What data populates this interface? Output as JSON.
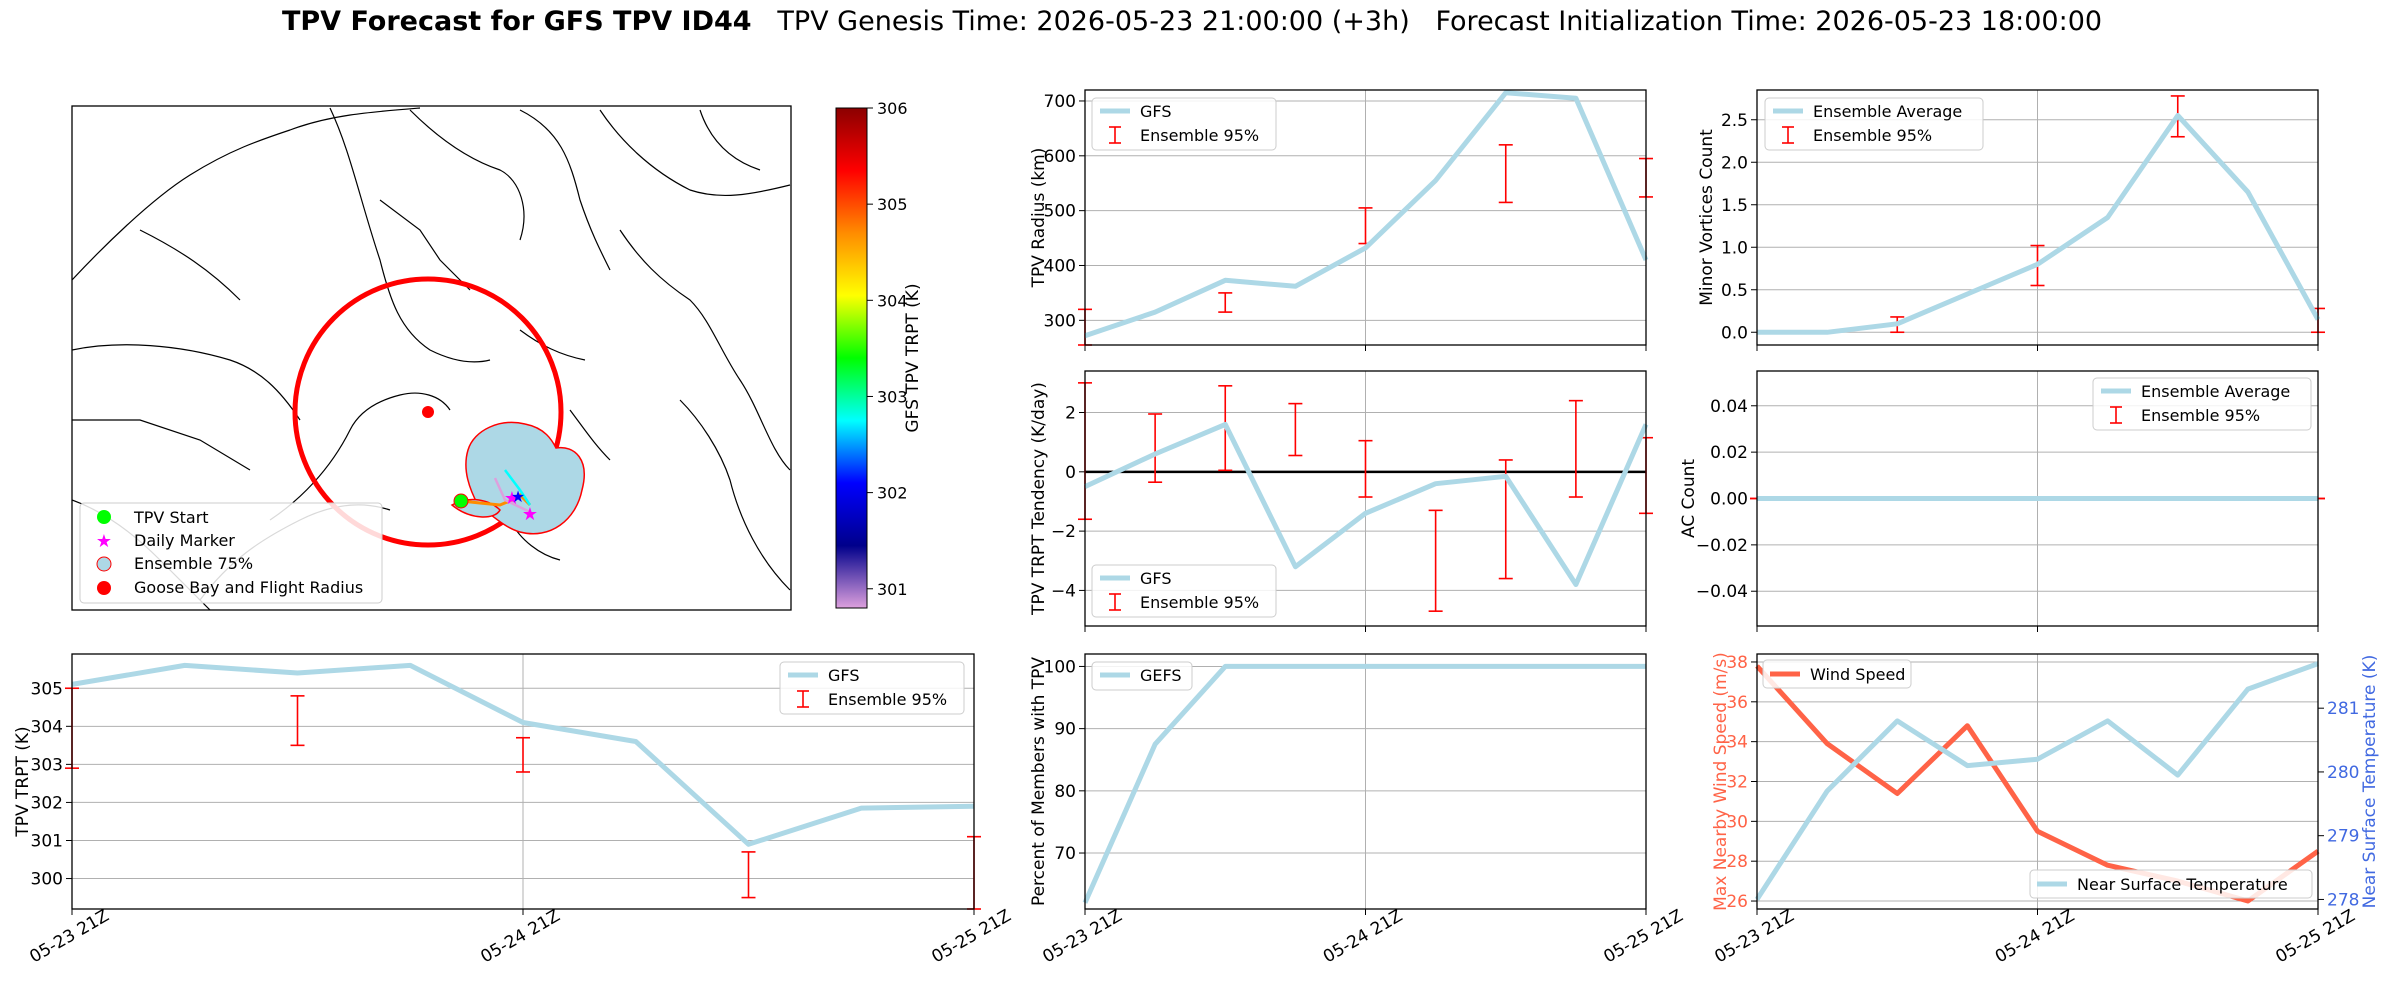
{
  "title": {
    "bold": "TPV Forecast for GFS TPV ID44",
    "rest": "TPV Genesis Time: 2026-05-23 21:00:00 (+3h)   Forecast Initialization Time: 2026-05-23 18:00:00"
  },
  "colors": {
    "gfs_line": "#add8e6",
    "errorbar": "#ff0000",
    "wind_line": "#ff6347",
    "temp_axis": "#4169e1",
    "wind_axis": "#ff6347",
    "grid": "#b0b0b0",
    "zero_line": "#000000"
  },
  "map": {
    "legend": [
      "TPV Start",
      "Daily Marker",
      "Ensemble 75%",
      "Goose Bay and Flight Radius"
    ],
    "legend_colors": [
      "#00ff00",
      "#ff00ff",
      "#add8e6",
      "#ff0000"
    ],
    "colorbar": {
      "label": "GFS TPV TRPT (K)",
      "ticks": [
        "301",
        "302",
        "303",
        "304",
        "305",
        "306"
      ],
      "stops": [
        "#dda0dd",
        "#00008b",
        "#0000ff",
        "#00ffff",
        "#00ff00",
        "#ffff00",
        "#ff8c00",
        "#ff0000",
        "#8b0000"
      ]
    }
  },
  "xticks": [
    "05-23 21Z",
    "05-24 21Z",
    "05-25 21Z"
  ],
  "chart_data": [
    {
      "id": "trpt",
      "type": "line",
      "ylabel": "TPV TRPT (K)",
      "x": [
        0,
        1,
        2,
        3,
        4,
        5,
        6,
        7,
        8
      ],
      "xticks_at": [
        0,
        4,
        8
      ],
      "xticklabels": [
        "05-23 21Z",
        "05-24 21Z",
        "05-25 21Z"
      ],
      "ylim": [
        299.2,
        305.9
      ],
      "yticks": [
        300,
        301,
        302,
        303,
        304,
        305
      ],
      "series": [
        {
          "name": "GFS",
          "values": [
            305.1,
            305.6,
            305.4,
            305.6,
            304.1,
            303.6,
            300.9,
            301.85,
            301.9
          ]
        }
      ],
      "errorbars": {
        "name": "Ensemble 95%",
        "x": [
          0,
          2,
          4,
          6,
          8
        ],
        "low": [
          302.9,
          303.5,
          302.8,
          299.5,
          299.2
        ],
        "high": [
          305.0,
          304.8,
          303.7,
          300.7,
          301.1
        ]
      },
      "legend_loc": "upper right"
    },
    {
      "id": "radius",
      "type": "line",
      "ylabel": "TPV Radius (km)",
      "x": [
        0,
        1,
        2,
        3,
        4,
        5,
        6,
        7,
        8
      ],
      "ylim": [
        255,
        720
      ],
      "yticks": [
        300,
        400,
        500,
        600,
        700
      ],
      "series": [
        {
          "name": "GFS",
          "values": [
            272,
            315,
            373,
            362,
            432,
            555,
            715,
            705,
            410
          ]
        }
      ],
      "errorbars": {
        "name": "Ensemble 95%",
        "x": [
          0,
          2,
          4,
          6,
          8
        ],
        "low": [
          255,
          315,
          440,
          515,
          525
        ],
        "high": [
          320,
          350,
          505,
          620,
          595
        ]
      },
      "legend_loc": "upper left"
    },
    {
      "id": "minor",
      "type": "line",
      "ylabel": "Minor Vortices Count",
      "x": [
        0,
        1,
        2,
        3,
        4,
        5,
        6,
        7,
        8
      ],
      "ylim": [
        -0.15,
        2.85
      ],
      "yticks": [
        0.0,
        0.5,
        1.0,
        1.5,
        2.0,
        2.5
      ],
      "series": [
        {
          "name": "Ensemble Average",
          "values": [
            0.0,
            0.0,
            0.1,
            0.45,
            0.8,
            1.35,
            2.55,
            1.65,
            0.15
          ]
        }
      ],
      "errorbars": {
        "name": "Ensemble 95%",
        "x": [
          2,
          4,
          6,
          8
        ],
        "low": [
          0.0,
          0.55,
          2.3,
          0.0
        ],
        "high": [
          0.18,
          1.02,
          2.78,
          0.28
        ]
      },
      "legend_loc": "upper left"
    },
    {
      "id": "tendency",
      "type": "line",
      "ylabel": "TPV TRPT Tendency (K/day)",
      "x": [
        0,
        1,
        2,
        3,
        4,
        5,
        6,
        7,
        8
      ],
      "ylim": [
        -5.2,
        3.4
      ],
      "yticks": [
        -4,
        -2,
        0,
        2
      ],
      "zero_line": true,
      "series": [
        {
          "name": "GFS",
          "values": [
            -0.5,
            0.6,
            1.6,
            -3.2,
            -1.4,
            -0.4,
            -0.15,
            -3.8,
            1.6
          ]
        }
      ],
      "errorbars": {
        "name": "Ensemble 95%",
        "x": [
          0,
          1,
          2,
          3,
          4,
          5,
          6,
          7,
          8
        ],
        "low": [
          -1.6,
          -0.35,
          0.05,
          0.55,
          -0.85,
          -4.7,
          -3.6,
          -0.85,
          -1.4
        ],
        "high": [
          3.0,
          1.95,
          2.9,
          2.3,
          1.05,
          -1.3,
          0.4,
          2.4,
          1.15
        ]
      },
      "legend_loc": "lower left"
    },
    {
      "id": "ac",
      "type": "line",
      "ylabel": "AC Count",
      "x": [
        0,
        1,
        2,
        3,
        4,
        5,
        6,
        7,
        8
      ],
      "ylim": [
        -0.055,
        0.055
      ],
      "yticks": [
        -0.04,
        -0.02,
        0.0,
        0.02,
        0.04
      ],
      "series": [
        {
          "name": "Ensemble Average",
          "values": [
            0,
            0,
            0,
            0,
            0,
            0,
            0,
            0,
            0
          ]
        }
      ],
      "errorbars": {
        "name": "Ensemble 95%",
        "x": [
          0,
          2,
          4,
          6,
          8
        ],
        "low": [
          0,
          0,
          0,
          0,
          0
        ],
        "high": [
          0,
          0,
          0,
          0,
          0
        ]
      },
      "legend_loc": "upper right"
    },
    {
      "id": "members",
      "type": "line",
      "ylabel": "Percent of Members with TPV",
      "x": [
        0,
        1,
        2,
        3,
        4,
        5,
        6,
        7,
        8
      ],
      "ylim": [
        61,
        102
      ],
      "yticks": [
        70,
        80,
        90,
        100
      ],
      "series": [
        {
          "name": "GEFS",
          "values": [
            62,
            87.5,
            100,
            100,
            100,
            100,
            100,
            100,
            100
          ]
        }
      ],
      "legend_loc": "upper left"
    },
    {
      "id": "wind",
      "type": "line",
      "ylabel": "Max Nearby Wind Speed (m/s)",
      "ylabel2": "Near Surface Temperature (K)",
      "x": [
        0,
        1,
        2,
        3,
        4,
        5,
        6,
        7,
        8
      ],
      "ylim": [
        25.6,
        38.4
      ],
      "yticks": [
        26,
        28,
        30,
        32,
        34,
        36,
        38
      ],
      "ylim2": [
        277.85,
        281.85
      ],
      "yticks2": [
        278,
        279,
        280,
        281
      ],
      "series": [
        {
          "name": "Wind Speed",
          "axis": "left",
          "values": [
            37.8,
            33.9,
            31.4,
            34.8,
            29.5,
            27.8,
            27.0,
            26.0,
            28.5
          ]
        },
        {
          "name": "Near Surface Temperature",
          "axis": "right",
          "values": [
            278.0,
            279.7,
            280.8,
            280.1,
            280.2,
            280.8,
            279.95,
            281.3,
            281.7
          ]
        }
      ],
      "legend_loc": [
        "upper left",
        "lower right"
      ]
    }
  ]
}
